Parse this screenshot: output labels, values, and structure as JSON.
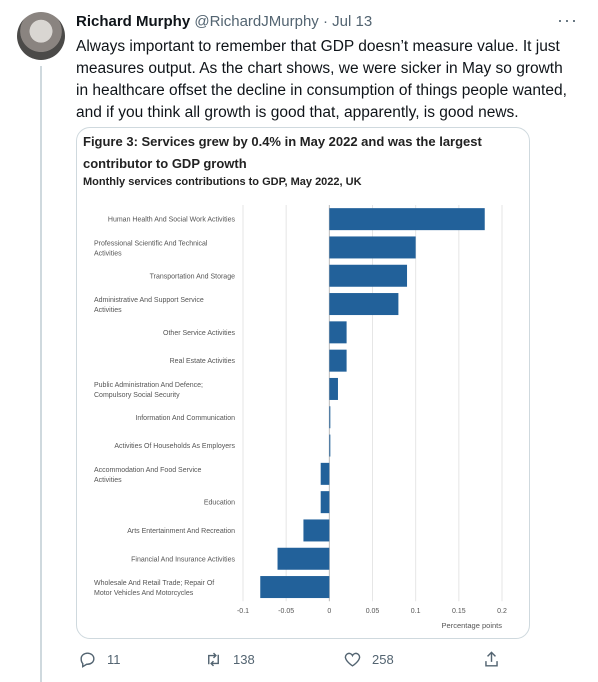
{
  "tweet": {
    "name": "Richard Murphy",
    "handle": "@RichardJMurphy",
    "separator": "·",
    "date": "Jul 13",
    "more": "···",
    "text": "Always important to remember that GDP doesn’t measure value. It just measures output. As the chart shows, we were sicker in May so growth in healthcare offset the decline in consumption of things people wanted, and if you think all growth is good that, apparently, is good news."
  },
  "card": {
    "figure_title": "Figure 3: Services grew by 0.4% in May 2022 and was the largest contributor to GDP growth",
    "subtitle": "Monthly services contributions to GDP, May 2022, UK"
  },
  "chart_data": {
    "type": "bar",
    "orientation": "horizontal",
    "categories": [
      [
        "Human Health And Social Work Activities"
      ],
      [
        "Professional Scientific And Technical",
        "Activities"
      ],
      [
        "Transportation And Storage"
      ],
      [
        "Administrative And Support Service",
        "Activities"
      ],
      [
        "Other Service Activities"
      ],
      [
        "Real Estate Activities"
      ],
      [
        "Public Administration And Defence;",
        "Compulsory Social Security"
      ],
      [
        "Information And Communication"
      ],
      [
        "Activities Of Households As Employers"
      ],
      [
        "Accommodation And Food Service",
        "Activities"
      ],
      [
        "Education"
      ],
      [
        "Arts Entertainment And Recreation"
      ],
      [
        "Financial And Insurance Activities"
      ],
      [
        "Wholesale And Retail Trade; Repair Of",
        "Motor Vehicles And Motorcycles"
      ]
    ],
    "values": [
      0.18,
      0.1,
      0.09,
      0.08,
      0.02,
      0.02,
      0.01,
      0.0,
      0.0,
      -0.01,
      -0.01,
      -0.03,
      -0.06,
      -0.08
    ],
    "xlim": [
      -0.1,
      0.2
    ],
    "xticks": [
      "-0.1",
      "-0.05",
      "0",
      "0.05",
      "0.1",
      "0.15",
      "0.2"
    ],
    "xlabel": "Percentage points",
    "bar_color": "#22619a",
    "grid": true
  },
  "actions": {
    "reply_count": "11",
    "retweet_count": "138",
    "like_count": "258"
  }
}
